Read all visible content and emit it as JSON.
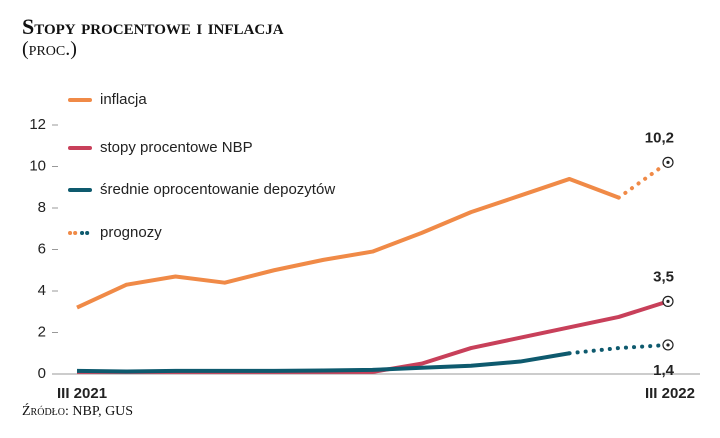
{
  "chart_data": {
    "type": "line",
    "title": "Stopy procentowe i inflacja",
    "subtitle": "(proc.)",
    "source": "Źródło: NBP, GUS",
    "categories": [
      "III 2021",
      null,
      null,
      null,
      null,
      null,
      null,
      null,
      null,
      null,
      null,
      null,
      "III 2022"
    ],
    "ylim": [
      0,
      12
    ],
    "yticks": [
      0,
      2,
      4,
      6,
      8,
      10,
      12
    ],
    "grid": false,
    "legend_forecast": "prognozy",
    "series": [
      {
        "name": "inflacja",
        "color": "#f08a47",
        "values": [
          3.2,
          4.3,
          4.7,
          4.4,
          5.0,
          5.5,
          5.9,
          6.8,
          7.8,
          8.6,
          9.4,
          8.5,
          10.2
        ],
        "forecast_start": 11,
        "end_label": "10,2"
      },
      {
        "name": "stopy procentowe NBP",
        "color": "#c8405a",
        "values": [
          0.1,
          0.1,
          0.1,
          0.1,
          0.1,
          0.1,
          0.1,
          0.5,
          1.25,
          1.75,
          2.25,
          2.75,
          3.5
        ],
        "forecast_start": null,
        "end_label": "3,5"
      },
      {
        "name": "średnie oprocentowanie depozytów",
        "color": "#0e5a6e",
        "values": [
          0.15,
          0.12,
          0.15,
          0.15,
          0.15,
          0.17,
          0.2,
          0.3,
          0.4,
          0.6,
          1.0,
          1.25,
          1.4
        ],
        "forecast_start": 10,
        "end_label": "1,4"
      }
    ]
  }
}
